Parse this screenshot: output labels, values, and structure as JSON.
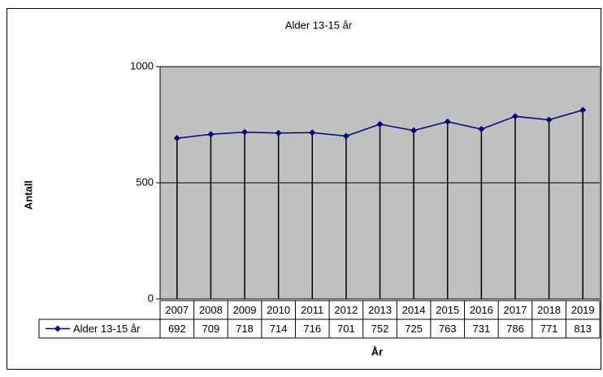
{
  "chart_data": {
    "type": "line",
    "title": "Alder 13-15 år",
    "x_label": "År",
    "y_label": "Antall",
    "categories": [
      "2007",
      "2008",
      "2009",
      "2010",
      "2011",
      "2012",
      "2013",
      "2014",
      "2015",
      "2016",
      "2017",
      "2018",
      "2019"
    ],
    "series": [
      {
        "name": "Alder 13-15 år",
        "color": "#000080",
        "values": [
          692,
          709,
          718,
          714,
          716,
          701,
          752,
          725,
          763,
          731,
          786,
          771,
          813
        ]
      }
    ],
    "ylim": [
      0,
      1000
    ],
    "yticks": [
      0,
      500,
      1000
    ],
    "grid": true,
    "plot_background": "#c0c0c0"
  }
}
